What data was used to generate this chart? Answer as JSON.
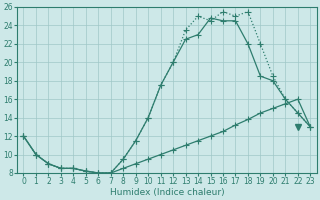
{
  "xlabel": "Humidex (Indice chaleur)",
  "xlim": [
    -0.5,
    23.5
  ],
  "ylim": [
    8,
    26
  ],
  "xticks": [
    0,
    1,
    2,
    3,
    4,
    5,
    6,
    7,
    8,
    9,
    10,
    11,
    12,
    13,
    14,
    15,
    16,
    17,
    18,
    19,
    20,
    21,
    22,
    23
  ],
  "yticks": [
    8,
    10,
    12,
    14,
    16,
    18,
    20,
    22,
    24,
    26
  ],
  "bg_color": "#cde8e8",
  "grid_color": "#a0c8c8",
  "line_color": "#2e7d6e",
  "line_main_x": [
    0,
    1,
    2,
    3,
    4,
    5,
    6,
    7,
    8,
    9,
    10,
    11,
    12,
    13,
    14,
    15,
    16,
    17,
    18,
    19,
    20,
    21,
    22,
    23
  ],
  "line_main_y": [
    12,
    10,
    9,
    8.5,
    8.5,
    8.2,
    8.0,
    8.0,
    9.5,
    11.5,
    14.0,
    17.5,
    20.0,
    22.5,
    23.0,
    24.8,
    24.5,
    24.5,
    22.0,
    18.5,
    18.0,
    16.0,
    14.5,
    13.0
  ],
  "line_jagged_x": [
    0,
    1,
    2,
    3,
    4,
    5,
    6,
    7,
    8,
    9,
    10,
    11,
    12,
    13,
    14,
    15,
    16,
    17,
    18,
    19,
    20,
    21,
    22,
    23
  ],
  "line_jagged_y": [
    12,
    10,
    9,
    8.5,
    8.5,
    8.2,
    8.0,
    8.0,
    9.5,
    11.5,
    14.0,
    17.5,
    20.0,
    23.5,
    25.0,
    24.5,
    25.5,
    25.0,
    25.5,
    22.0,
    18.5,
    16.0,
    14.5,
    13.0
  ],
  "line_lower_x": [
    0,
    1,
    2,
    3,
    4,
    5,
    6,
    7,
    8,
    9,
    10,
    11,
    12,
    13,
    14,
    15,
    16,
    17,
    18,
    19,
    20,
    21,
    22,
    23
  ],
  "line_lower_y": [
    12,
    10,
    9,
    8.5,
    8.5,
    8.2,
    8.0,
    8.0,
    8.5,
    9.0,
    9.5,
    10.0,
    10.5,
    11.0,
    11.5,
    12.0,
    12.5,
    13.2,
    13.8,
    14.5,
    15.0,
    15.5,
    16.0,
    13.0
  ],
  "triangle_x": 22,
  "triangle_y": 13.0,
  "marker_size": 3,
  "linewidth": 0.9,
  "tick_fontsize": 5.5,
  "xlabel_fontsize": 6.5
}
